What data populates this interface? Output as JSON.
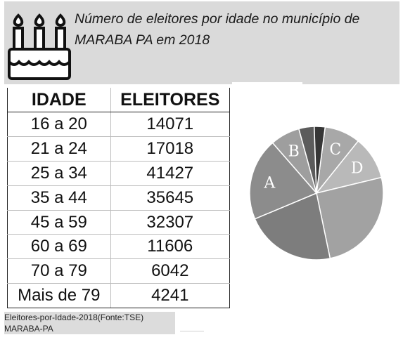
{
  "header": {
    "title": "Número de eleitores por idade no município de MARABA PA em 2018",
    "icon": "birthday-cake-icon"
  },
  "table": {
    "headers": [
      "IDADE",
      "ELEITORES"
    ],
    "rows": [
      [
        "16 a 20",
        "14071"
      ],
      [
        "21 a 24",
        "17018"
      ],
      [
        "25 a 34",
        "41427"
      ],
      [
        "35 a 44",
        "35645"
      ],
      [
        "45 a 59",
        "32307"
      ],
      [
        "60 a 69",
        "11606"
      ],
      [
        "70 a 79",
        "6042"
      ],
      [
        "Mais de 79",
        "4241"
      ]
    ]
  },
  "footer": {
    "line1": "Eleitores-por-Idade-2018(Fonte:TSE)",
    "line2": "MARABA-PA"
  },
  "chart_data": {
    "type": "pie",
    "categories": [
      "16 a 20",
      "21 a 24",
      "25 a 34",
      "35 a 44",
      "45 a 59",
      "60 a 69",
      "70 a 79",
      "Mais de 79"
    ],
    "values": [
      14071,
      17018,
      41427,
      35645,
      32307,
      11606,
      6042,
      4241
    ],
    "slice_labels": [
      "C",
      "D",
      "",
      "",
      "A",
      "B",
      "",
      ""
    ],
    "colors": [
      "#a8a8a8",
      "#b9b9b9",
      "#a2a2a2",
      "#7d7d7d",
      "#8c8c8c",
      "#9e9e9e",
      "#5c5c5c",
      "#363636"
    ],
    "title": ""
  }
}
